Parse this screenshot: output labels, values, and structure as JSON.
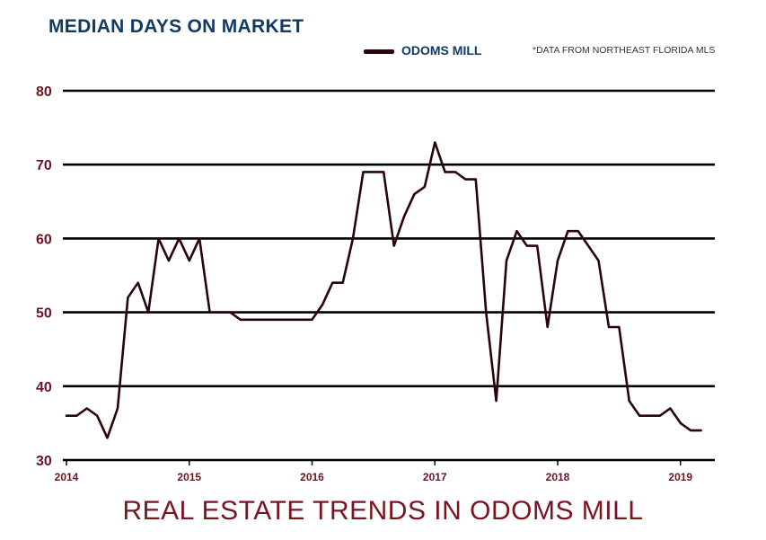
{
  "title": "MEDIAN DAYS ON MARKET",
  "legend_label": "ODOMS MILL",
  "source_note": "*DATA FROM NORTHEAST FLORIDA MLS",
  "footer": "REAL ESTATE TRENDS IN ODOMS MILL",
  "colors": {
    "line": "#2a0508",
    "title": "#123a63",
    "ticks": "#6e1420",
    "footer": "#7a1520",
    "grid": "#000000"
  },
  "chart_data": {
    "type": "line",
    "title": "MEDIAN DAYS ON MARKET",
    "xlabel": "",
    "ylabel": "",
    "ylim": [
      30,
      80
    ],
    "xlim": [
      2014.0,
      2019.17
    ],
    "yticks": [
      30,
      40,
      50,
      60,
      70,
      80
    ],
    "xticks": [
      2014,
      2015,
      2016,
      2017,
      2018,
      2019
    ],
    "grid": "horizontal",
    "legend": "top-center",
    "series": [
      {
        "name": "ODOMS MILL",
        "x": [
          2014.0,
          2014.083,
          2014.167,
          2014.25,
          2014.333,
          2014.417,
          2014.5,
          2014.583,
          2014.667,
          2014.75,
          2014.833,
          2014.917,
          2015.0,
          2015.083,
          2015.167,
          2015.25,
          2015.333,
          2015.417,
          2015.5,
          2015.583,
          2015.667,
          2015.75,
          2015.833,
          2015.917,
          2016.0,
          2016.083,
          2016.167,
          2016.25,
          2016.333,
          2016.417,
          2016.5,
          2016.583,
          2016.667,
          2016.75,
          2016.833,
          2016.917,
          2017.0,
          2017.083,
          2017.167,
          2017.25,
          2017.333,
          2017.417,
          2017.5,
          2017.583,
          2017.667,
          2017.75,
          2017.833,
          2017.917,
          2018.0,
          2018.083,
          2018.167,
          2018.25,
          2018.333,
          2018.417,
          2018.5,
          2018.583,
          2018.667,
          2018.75,
          2018.833,
          2018.917,
          2019.0,
          2019.083,
          2019.167
        ],
        "y": [
          36,
          36,
          37,
          36,
          33,
          37,
          52,
          54,
          50,
          60,
          57,
          60,
          57,
          60,
          50,
          50,
          50,
          49,
          49,
          49,
          49,
          49,
          49,
          49,
          49,
          51,
          54,
          54,
          60,
          69,
          69,
          69,
          59,
          63,
          66,
          67,
          73,
          69,
          69,
          68,
          68,
          50,
          38,
          57,
          61,
          59,
          59,
          48,
          57,
          61,
          61,
          59,
          57,
          48,
          48,
          38,
          36,
          36,
          36,
          37,
          35,
          34,
          34
        ]
      }
    ]
  }
}
